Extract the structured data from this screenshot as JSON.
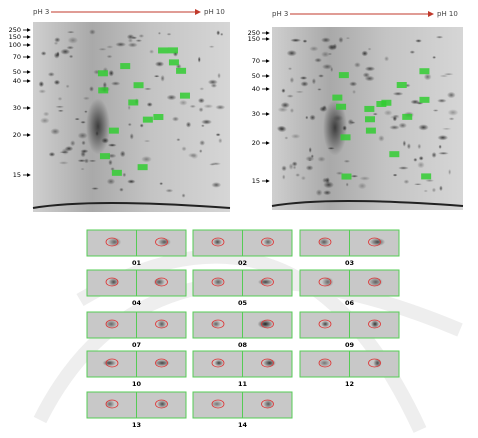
{
  "gels": [
    {
      "ph_start": "pH 3",
      "ph_end": "pH 10",
      "mw_labels": [
        "250",
        "150",
        "100",
        "70",
        "50",
        "40",
        "30",
        "20",
        "15"
      ]
    },
    {
      "ph_start": "pH 3",
      "ph_end": "pH 10",
      "mw_labels": [
        "250",
        "150",
        "70",
        "50",
        "40",
        "30",
        "20",
        "15"
      ]
    }
  ],
  "panels": [
    "01",
    "02",
    "03",
    "04",
    "05",
    "06",
    "07",
    "08",
    "09",
    "10",
    "11",
    "12",
    "13",
    "14"
  ]
}
